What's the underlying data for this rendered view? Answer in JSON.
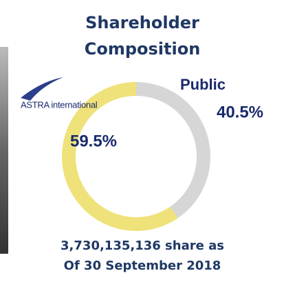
{
  "chart_data": {
    "type": "donut",
    "title": [
      "Shareholder",
      "Composition"
    ],
    "categories": [
      "ASTRA international",
      "Public"
    ],
    "values": [
      59.5,
      40.5
    ],
    "value_labels": [
      "59.5%",
      "40.5%"
    ],
    "colors": [
      "#efe27a",
      "#d6d6d6"
    ],
    "annotations": [
      "3,730,135,136  share as",
      "Of 30 September 2018"
    ]
  }
}
